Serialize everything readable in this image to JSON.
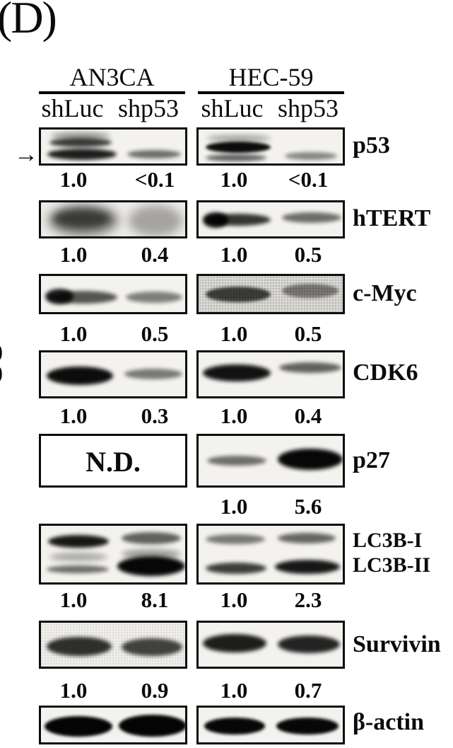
{
  "panel_label": "(D)",
  "header": {
    "cell_lines": [
      "AN3CA",
      "HEC-59"
    ],
    "lane_labels": [
      "shLuc",
      "shp53",
      "shLuc",
      "shp53"
    ]
  },
  "rows": {
    "p53": {
      "label": "p53",
      "values": [
        "1.0",
        "<0.1",
        "1.0",
        "<0.1"
      ]
    },
    "htert": {
      "label": "hTERT",
      "values": [
        "1.0",
        "0.4",
        "1.0",
        "0.5"
      ]
    },
    "cmyc": {
      "label": "c-Myc",
      "values": [
        "1.0",
        "0.5",
        "1.0",
        "0.5"
      ]
    },
    "cdk6": {
      "label": "CDK6",
      "values": [
        "1.0",
        "0.3",
        "1.0",
        "0.4"
      ]
    },
    "p27": {
      "label": "p27",
      "nd": "N.D.",
      "values": [
        "1.0",
        "5.6"
      ]
    },
    "lc3b": {
      "label_i": "LC3B-I",
      "label_ii": "LC3B-II",
      "values": [
        "1.0",
        "8.1",
        "1.0",
        "2.3"
      ]
    },
    "survivin": {
      "label": "Survivin",
      "values": [
        "1.0",
        "0.9",
        "1.0",
        "0.7"
      ]
    },
    "bactin": {
      "label": "β-actin"
    }
  },
  "annotations": {
    "arrow": "→",
    "edge_fragments": [
      "9",
      "9"
    ]
  },
  "colors": {
    "ink": "#0b0b0b",
    "blot_background": "#f3f2ee",
    "grainy_blot_background": "#dbd9d5"
  }
}
